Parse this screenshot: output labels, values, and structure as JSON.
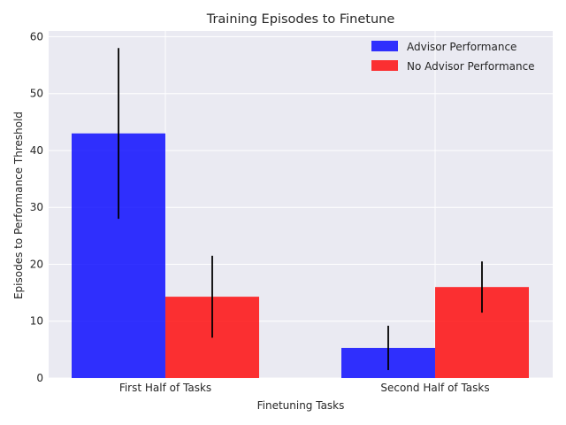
{
  "chart_data": {
    "type": "bar",
    "title": "Training Episodes to Finetune",
    "xlabel": "Finetuning Tasks",
    "ylabel": "Episodes to Performance Threshold",
    "categories": [
      "First Half of Tasks",
      "Second Half of Tasks"
    ],
    "ylim": [
      0,
      61
    ],
    "yticks": [
      0,
      10,
      20,
      30,
      40,
      50,
      60
    ],
    "grid": true,
    "legend_position": "top-right",
    "series": [
      {
        "name": "Advisor Performance",
        "color": "#0000ff",
        "values": [
          43,
          5.3
        ],
        "error_low": [
          28,
          1.4
        ],
        "error_high": [
          58,
          9.2
        ]
      },
      {
        "name": "No Advisor Performance",
        "color": "#ff0000",
        "values": [
          14.3,
          16.0
        ],
        "error_low": [
          7.1,
          11.5
        ],
        "error_high": [
          21.5,
          20.5
        ]
      }
    ]
  }
}
